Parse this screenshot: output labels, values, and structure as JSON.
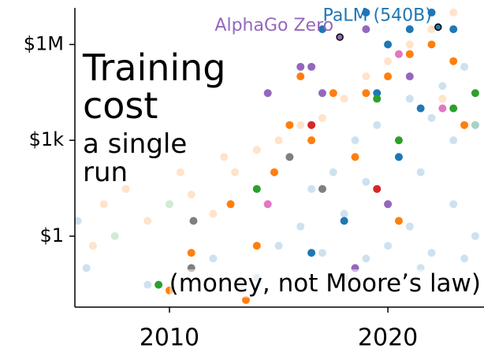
{
  "chart_data": {
    "type": "scatter",
    "title": "Training cost",
    "subtitle": "a single run",
    "note": "(money, not Moore’s law)",
    "yscale": "log",
    "xlim": [
      2005.67,
      2024.4
    ],
    "ylim": [
      0.006,
      14000000
    ],
    "xticks": [
      2010,
      2020
    ],
    "yticks": [
      {
        "value": 1000000,
        "label": "$1M"
      },
      {
        "value": 1000,
        "label": "$1k"
      },
      {
        "value": 1,
        "label": "$1"
      }
    ],
    "series": [
      {
        "color": "#1f77b4",
        "alpha": 0.22,
        "x": [
          2005.8,
          2006.2,
          2009,
          2012,
          2014,
          2015,
          2016,
          2016.5,
          2017,
          2017.5,
          2018,
          2018.5,
          2019,
          2019,
          2019.5,
          2020,
          2020,
          2020.5,
          2021,
          2021,
          2021.5,
          2022,
          2022,
          2022.5,
          2023,
          2023,
          2023.5,
          2024,
          2024,
          2018,
          2021.5,
          2023.5
        ],
        "values": [
          3,
          0.1,
          0.03,
          0.2,
          0.05,
          0.5,
          2,
          30,
          0.3,
          100,
          5,
          1000,
          0.2,
          50,
          3000,
          10,
          0.5,
          300,
          20000,
          2,
          100,
          5000,
          0.3,
          50000,
          1000,
          10,
          200000,
          3000,
          1,
          0.05,
          0.1,
          0.2
        ]
      },
      {
        "color": "#ff7f0e",
        "alpha": 0.22,
        "x": [
          2006.5,
          2007,
          2008,
          2009,
          2010.5,
          2011,
          2012,
          2012.5,
          2013,
          2014,
          2015,
          2016,
          2017,
          2018,
          2019,
          2020,
          2021,
          2022,
          2023,
          2022.5
        ],
        "values": [
          0.5,
          10,
          30,
          3,
          100,
          20,
          5,
          300,
          100,
          500,
          1000,
          3000,
          5000,
          20000,
          100000,
          300000,
          1000000,
          3000000,
          10000000,
          20000
        ]
      },
      {
        "color": "#2ca02c",
        "alpha": 0.22,
        "x": [
          2007.5,
          2010,
          2024
        ],
        "values": [
          1,
          10,
          3000
        ]
      },
      {
        "color": "#ff7f0e",
        "alpha": 1,
        "x": [
          2010,
          2011,
          2012.8,
          2014,
          2014.8,
          2015.5,
          2016,
          2016.5,
          2017.5,
          2018.5,
          2019,
          2020,
          2020.5,
          2021,
          2022,
          2023,
          2023.5,
          2013.5
        ],
        "values": [
          0.02,
          0.3,
          10,
          0.5,
          100,
          3000,
          100000,
          1000,
          30000,
          300,
          30000,
          100000,
          3,
          500000,
          1000000,
          300000,
          3000,
          0.01
        ]
      },
      {
        "color": "#1f77b4",
        "alpha": 1,
        "x": [
          2017,
          2019,
          2019.5,
          2020,
          2020.5,
          2021,
          2021.5,
          2022,
          2023,
          2016.5,
          2018
        ],
        "values": [
          3000000,
          10000000,
          30000,
          1000000,
          300,
          3000000,
          10000,
          10000000,
          3000000,
          0.3,
          3
        ]
      },
      {
        "color": "#9467bd",
        "alpha": 1,
        "x": [
          2016.5,
          2017,
          2019,
          2020,
          2018.5,
          2021,
          2014.5,
          2016
        ],
        "values": [
          200000,
          30000,
          3000000,
          10,
          0.1,
          100000,
          30000,
          200000
        ]
      },
      {
        "color": "#2ca02c",
        "alpha": 1,
        "x": [
          2009.5,
          2014,
          2019.5,
          2020.5,
          2023,
          2024
        ],
        "values": [
          0.03,
          30,
          20000,
          1000,
          10000,
          30000
        ]
      },
      {
        "color": "#e377c2",
        "alpha": 1,
        "x": [
          2014.5,
          2020.5,
          2022.5
        ],
        "values": [
          10,
          500000,
          10000
        ]
      },
      {
        "color": "#7f7f7f",
        "alpha": 1,
        "x": [
          2011,
          2011.1,
          2015.5,
          2017
        ],
        "values": [
          0.1,
          3,
          300,
          30
        ]
      },
      {
        "color": "#d62728",
        "alpha": 1,
        "x": [
          2016.5,
          2019.5
        ],
        "values": [
          3000,
          30
        ]
      }
    ],
    "annotations": [
      {
        "text": "PaLM (540B)",
        "x": 2022.3,
        "y": 3500000,
        "color": "#1f77b4"
      },
      {
        "text": "AlphaGo Zero",
        "x": 2017.8,
        "y": 1700000,
        "color": "#9467bd"
      }
    ]
  }
}
